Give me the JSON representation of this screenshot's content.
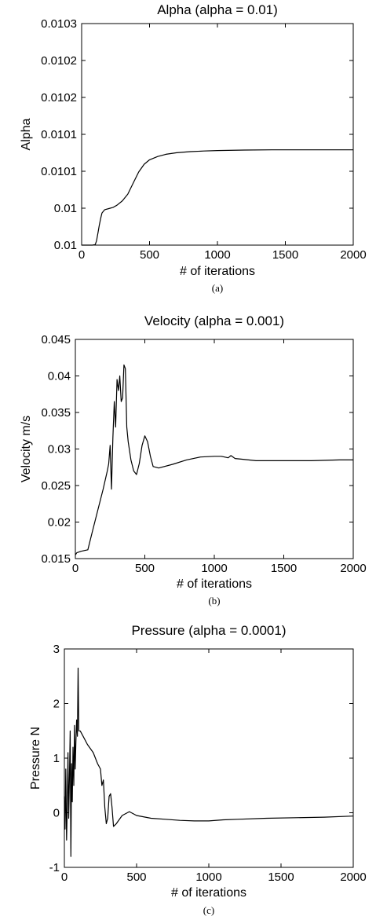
{
  "chart_data": [
    {
      "type": "line",
      "title": "Alpha (alpha = 0.01)",
      "xlabel": "# of iterations",
      "ylabel": "Alpha",
      "caption": "(a)",
      "xlim": [
        0,
        2000
      ],
      "ylim": [
        0,
        10
      ],
      "x_ticks": [
        0,
        500,
        1000,
        1500,
        2000
      ],
      "x_tick_labels": [
        "0",
        "500",
        "1000",
        "1500",
        "2000"
      ],
      "y_ticks": [
        0,
        2,
        4,
        6,
        8,
        10
      ],
      "y_tick_labels": [
        "0.01",
        "0.01",
        "0.0101",
        "0.0101",
        "0.0102",
        "0.0102",
        "0.0103"
      ],
      "y_tick_positions": [
        0,
        1,
        2,
        3,
        4,
        5,
        6
      ],
      "y_range_index": [
        0,
        6
      ],
      "series": [
        {
          "x": [
            0,
            80,
            100,
            110,
            120,
            130,
            140,
            150,
            170,
            200,
            230,
            260,
            300,
            340,
            380,
            420,
            460,
            500,
            560,
            620,
            700,
            800,
            900,
            1000,
            1200,
            1400,
            1600,
            1800,
            2000
          ],
          "y": [
            0,
            0,
            0.02,
            0.2,
            0.55,
            0.9,
            1.2,
            1.45,
            1.6,
            1.65,
            1.7,
            1.8,
            2.0,
            2.3,
            2.8,
            3.3,
            3.65,
            3.85,
            4.0,
            4.1,
            4.17,
            4.22,
            4.25,
            4.27,
            4.29,
            4.3,
            4.3,
            4.3,
            4.3
          ]
        }
      ]
    },
    {
      "type": "line",
      "title": "Velocity (alpha = 0.001)",
      "xlabel": "# of iterations",
      "ylabel": "Velocity m/s",
      "caption": "(b)",
      "xlim": [
        0,
        2000
      ],
      "ylim": [
        0.015,
        0.045
      ],
      "x_ticks": [
        0,
        500,
        1000,
        1500,
        2000
      ],
      "x_tick_labels": [
        "0",
        "500",
        "1000",
        "1500",
        "2000"
      ],
      "y_ticks": [
        0.015,
        0.02,
        0.025,
        0.03,
        0.035,
        0.04,
        0.045
      ],
      "y_tick_labels": [
        "0.015",
        "0.02",
        "0.025",
        "0.03",
        "0.035",
        "0.04",
        "0.045"
      ],
      "series": [
        {
          "x": [
            0,
            10,
            40,
            90,
            120,
            160,
            200,
            230,
            240,
            250,
            260,
            270,
            280,
            290,
            300,
            310,
            320,
            330,
            340,
            350,
            360,
            370,
            380,
            400,
            420,
            440,
            460,
            480,
            500,
            520,
            540,
            560,
            600,
            700,
            800,
            900,
            1000,
            1050,
            1100,
            1120,
            1150,
            1200,
            1300,
            1500,
            1700,
            1900,
            2000
          ],
          "y": [
            0.0155,
            0.0158,
            0.016,
            0.0162,
            0.0185,
            0.0215,
            0.0245,
            0.027,
            0.028,
            0.0305,
            0.0245,
            0.0315,
            0.0365,
            0.033,
            0.0395,
            0.038,
            0.04,
            0.0365,
            0.037,
            0.0415,
            0.041,
            0.033,
            0.031,
            0.0285,
            0.027,
            0.0265,
            0.028,
            0.0305,
            0.0318,
            0.031,
            0.029,
            0.0276,
            0.0274,
            0.0279,
            0.0285,
            0.0289,
            0.029,
            0.029,
            0.0288,
            0.0291,
            0.0287,
            0.0286,
            0.0284,
            0.0284,
            0.0284,
            0.0285,
            0.0285
          ]
        }
      ]
    },
    {
      "type": "line",
      "title": "Pressure (alpha = 0.0001)",
      "xlabel": "# of iterations",
      "ylabel": "Pressure N",
      "caption": "(c)",
      "xlim": [
        0,
        2000
      ],
      "ylim": [
        -1,
        3
      ],
      "x_ticks": [
        0,
        500,
        1000,
        1500,
        2000
      ],
      "x_tick_labels": [
        "0",
        "500",
        "1000",
        "1500",
        "2000"
      ],
      "y_ticks": [
        -1,
        0,
        1,
        2,
        3
      ],
      "y_tick_labels": [
        "-1",
        "0",
        "1",
        "2",
        "3"
      ],
      "series": [
        {
          "x": [
            0,
            5,
            10,
            15,
            20,
            25,
            30,
            35,
            40,
            45,
            50,
            55,
            60,
            65,
            70,
            75,
            80,
            85,
            90,
            95,
            100,
            110,
            130,
            160,
            200,
            230,
            250,
            260,
            270,
            280,
            290,
            300,
            310,
            320,
            330,
            340,
            360,
            400,
            450,
            500,
            600,
            700,
            800,
            900,
            1000,
            1100,
            1200,
            1400,
            1600,
            1800,
            2000
          ],
          "y": [
            0.3,
            -0.3,
            0.8,
            -0.5,
            0.1,
            1.1,
            -0.1,
            0.6,
            1.5,
            -0.8,
            0.9,
            0.2,
            1.2,
            0.5,
            1.6,
            0.8,
            1.3,
            1.7,
            1.4,
            2.65,
            1.5,
            1.5,
            1.4,
            1.25,
            1.1,
            0.9,
            0.8,
            0.5,
            0.6,
            0.1,
            -0.2,
            -0.1,
            0.3,
            0.35,
            0.1,
            -0.25,
            -0.2,
            -0.05,
            0.02,
            -0.05,
            -0.1,
            -0.12,
            -0.14,
            -0.15,
            -0.15,
            -0.13,
            -0.12,
            -0.1,
            -0.09,
            -0.08,
            -0.06
          ]
        }
      ]
    }
  ]
}
